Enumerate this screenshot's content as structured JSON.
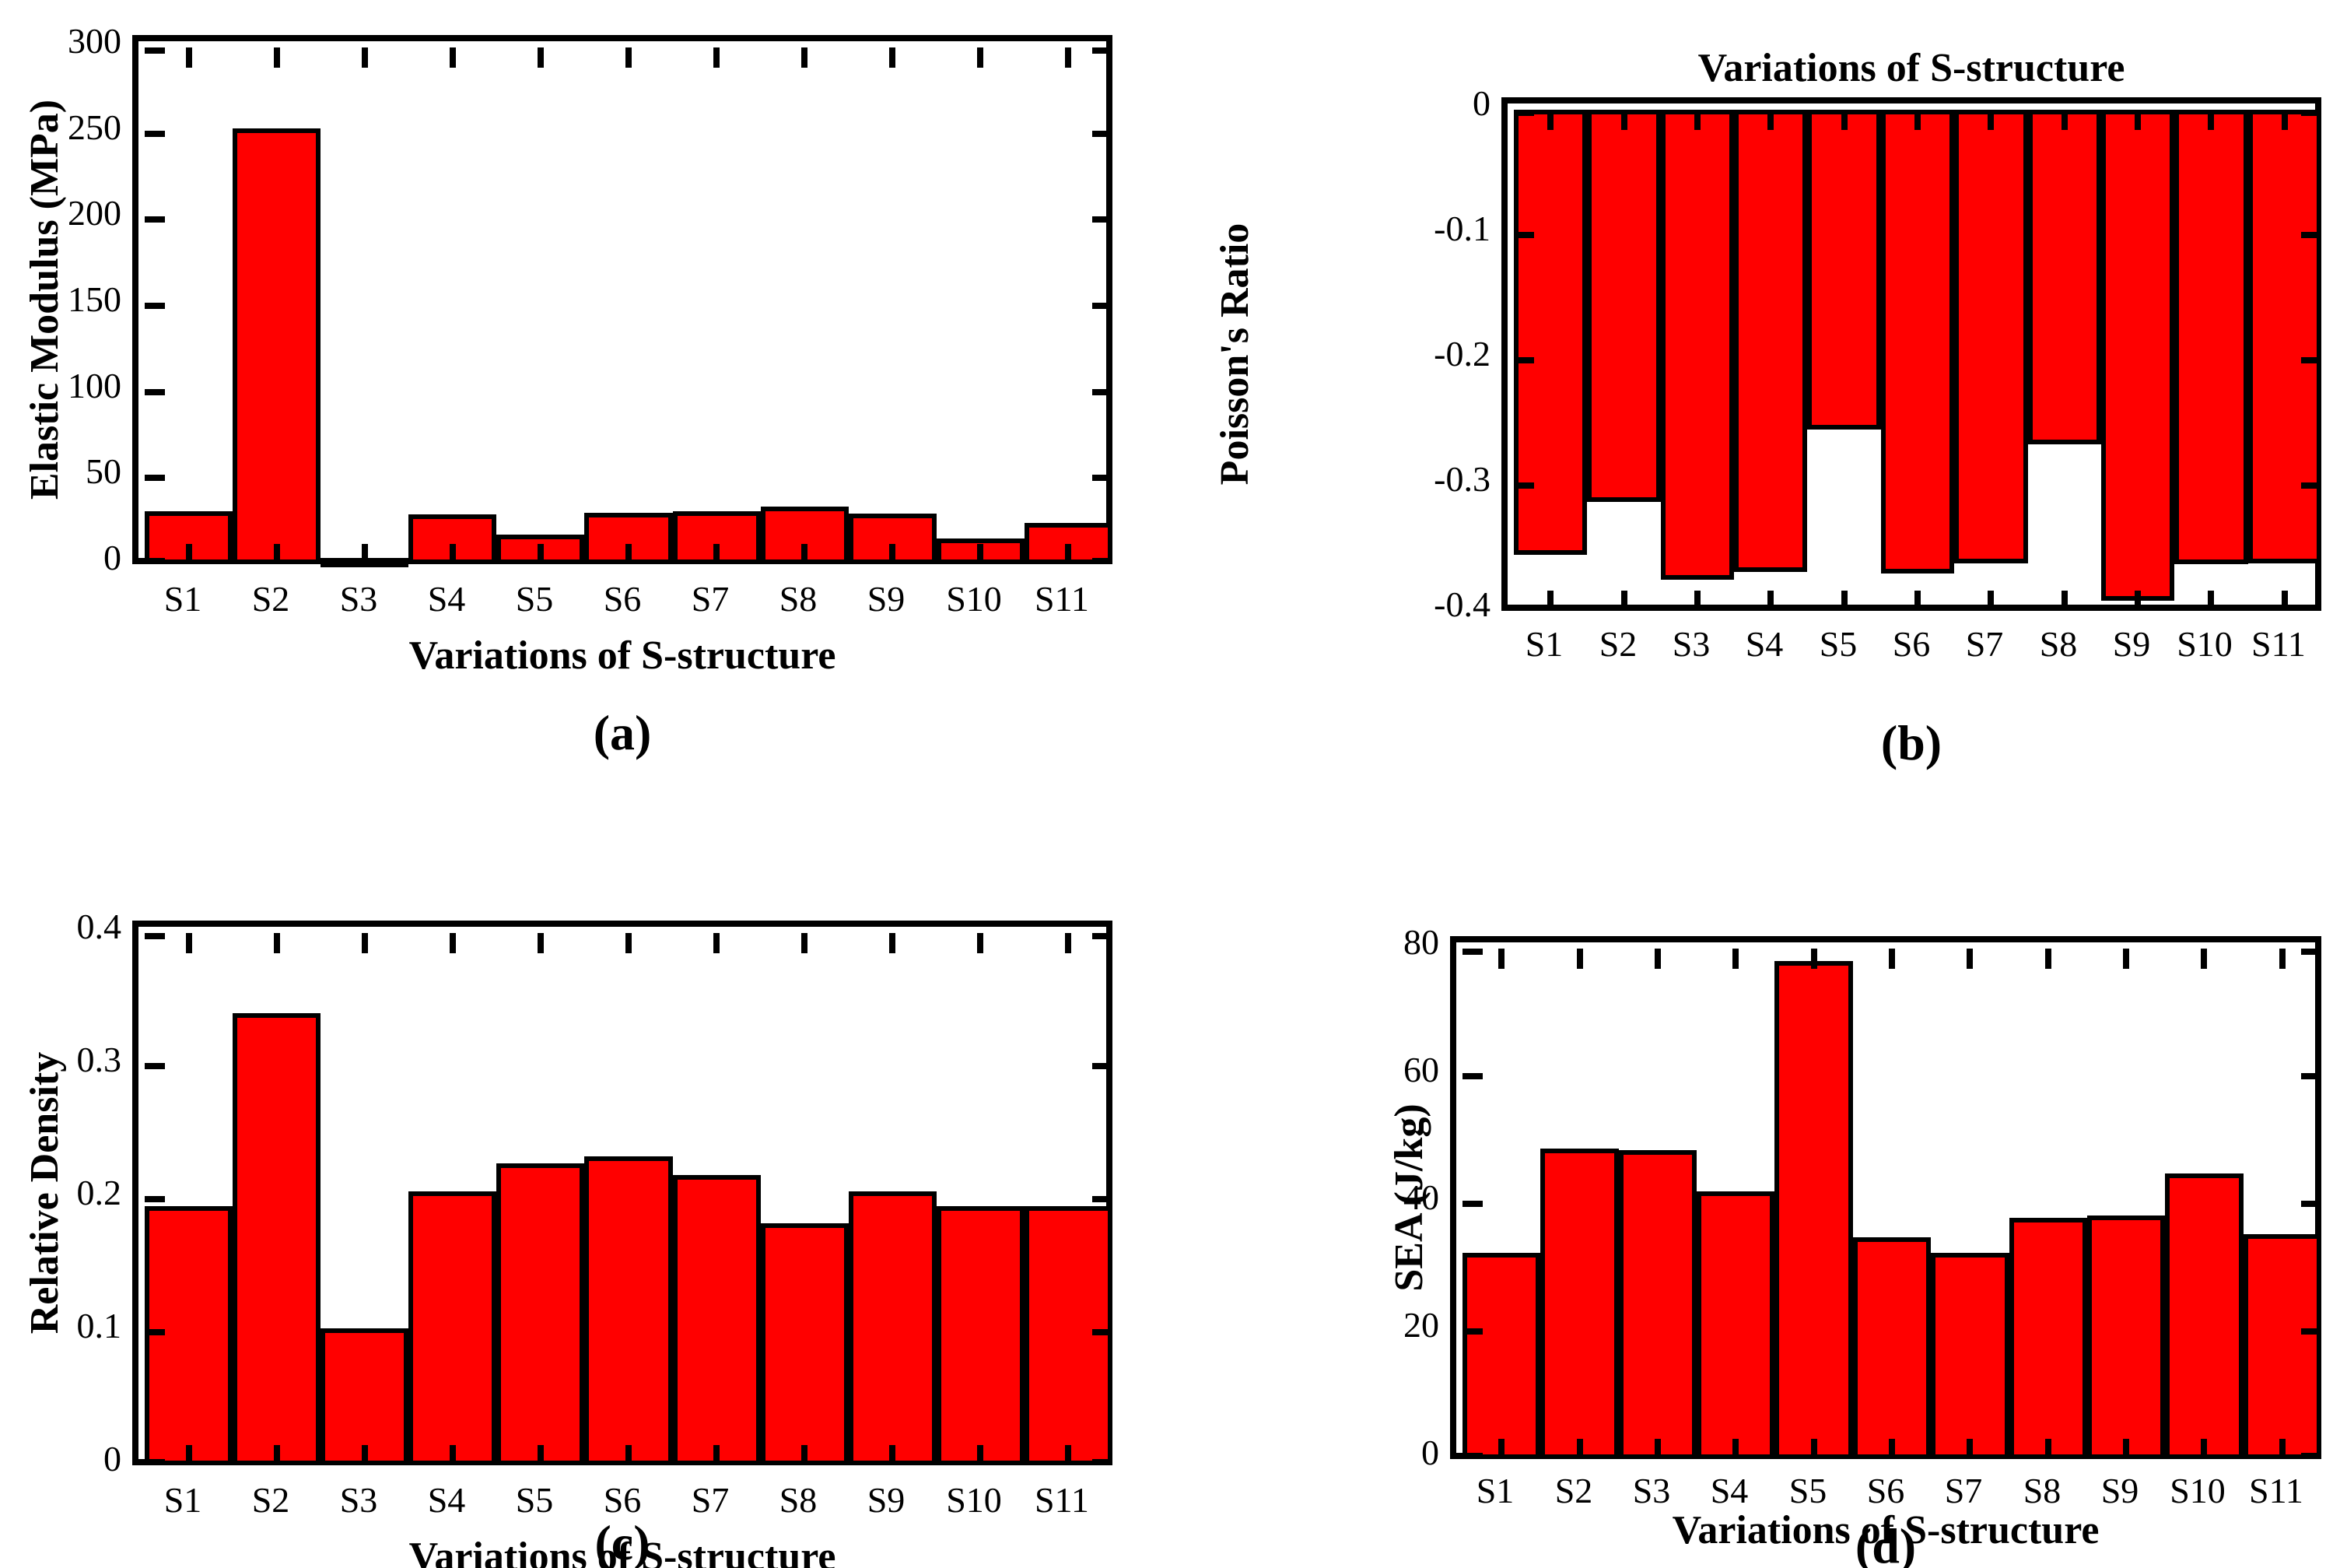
{
  "figure": {
    "background": "#ffffff",
    "bar_fill": "#ff0000",
    "line_color": "#000000",
    "caption_labels": [
      "(a)",
      "(b)",
      "(c)",
      "(d)"
    ]
  },
  "chart_data": [
    {
      "id": "a",
      "type": "bar",
      "title": "",
      "ylabel": "Elastic Modulus (MPa)",
      "xlabel": "Variations of S-structure",
      "caption": "(a)",
      "categories": [
        "S1",
        "S2",
        "S3",
        "S4",
        "S5",
        "S6",
        "S7",
        "S8",
        "S9",
        "S10",
        "S11"
      ],
      "values": [
        30.5,
        253,
        3.5,
        29,
        17,
        30,
        30.5,
        33.5,
        29.5,
        15,
        24
      ],
      "ylim": [
        0,
        300
      ],
      "yticks": [
        0,
        50,
        100,
        150,
        200,
        250,
        300
      ],
      "ytick_labels": [
        "0",
        "50",
        "100",
        "150",
        "200",
        "250",
        "300"
      ],
      "bar_anchor": "bottom",
      "grid": false,
      "legend": null
    },
    {
      "id": "b",
      "type": "bar",
      "title": "Variations of S-structure",
      "ylabel": "Poisson's Ratio",
      "xlabel": "",
      "caption": "(b)",
      "categories": [
        "S1",
        "S2",
        "S3",
        "S4",
        "S5",
        "S6",
        "S7",
        "S8",
        "S9",
        "S10",
        "S11"
      ],
      "values": [
        -0.355,
        -0.313,
        -0.375,
        -0.369,
        -0.255,
        -0.37,
        -0.362,
        -0.267,
        -0.392,
        -0.363,
        -0.362
      ],
      "ylim": [
        -0.4,
        0
      ],
      "yticks": [
        0,
        -0.1,
        -0.2,
        -0.3,
        -0.4
      ],
      "ytick_labels": [
        "0",
        "-0.1",
        "-0.2",
        "-0.3",
        "-0.4"
      ],
      "bar_anchor": "top",
      "grid": false,
      "legend": null
    },
    {
      "id": "c",
      "type": "bar",
      "title": "",
      "ylabel": "Relative Density",
      "xlabel": "Variations of S-structure",
      "caption": "(c)",
      "categories": [
        "S1",
        "S2",
        "S3",
        "S4",
        "S5",
        "S6",
        "S7",
        "S8",
        "S9",
        "S10",
        "S11"
      ],
      "values": [
        0.195,
        0.34,
        0.103,
        0.206,
        0.227,
        0.232,
        0.218,
        0.182,
        0.206,
        0.195,
        0.195
      ],
      "ylim": [
        0,
        0.4
      ],
      "yticks": [
        0,
        0.1,
        0.2,
        0.3,
        0.4
      ],
      "ytick_labels": [
        "0",
        "0.1",
        "0.2",
        "0.3",
        "0.4"
      ],
      "bar_anchor": "bottom",
      "grid": false,
      "legend": null
    },
    {
      "id": "d",
      "type": "bar",
      "title": "",
      "ylabel": "SEA (J/kg)",
      "xlabel": "Variations of S-structure",
      "caption": "(d)",
      "categories": [
        "S1",
        "S2",
        "S3",
        "S4",
        "S5",
        "S6",
        "S7",
        "S8",
        "S9",
        "S10",
        "S11"
      ],
      "values": [
        32.3,
        48.6,
        48.4,
        42,
        78,
        34.7,
        32.3,
        37.8,
        38.2,
        44.8,
        35.2
      ],
      "ylim": [
        0,
        80
      ],
      "yticks": [
        0,
        20,
        40,
        60,
        80
      ],
      "ytick_labels": [
        "0",
        "20",
        "40",
        "60",
        "80"
      ],
      "bar_anchor": "bottom",
      "grid": false,
      "legend": null
    }
  ]
}
